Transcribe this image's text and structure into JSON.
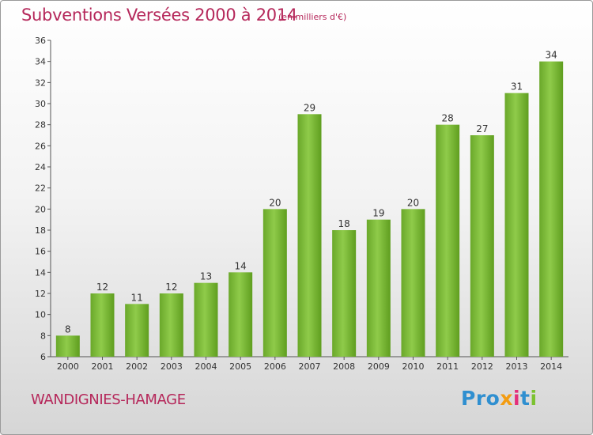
{
  "header": {
    "title": "Subventions Versées 2000 à 2014",
    "unit": "(en milliers d'€)"
  },
  "footer": {
    "city": "WANDIGNIES-HAMAGE",
    "logo": [
      "Pro",
      "x",
      "i",
      "t",
      "i"
    ]
  },
  "chart_data": {
    "type": "bar",
    "title": "Subventions Versées 2000 à 2014",
    "categories": [
      "2000",
      "2001",
      "2002",
      "2003",
      "2004",
      "2005",
      "2006",
      "2007",
      "2008",
      "2009",
      "2010",
      "2011",
      "2012",
      "2013",
      "2014"
    ],
    "values": [
      8,
      12,
      11,
      12,
      13,
      14,
      20,
      29,
      18,
      19,
      20,
      28,
      27,
      31,
      34
    ],
    "ylim": [
      6,
      36
    ],
    "yticks": [
      6,
      8,
      10,
      12,
      14,
      16,
      18,
      20,
      22,
      24,
      26,
      28,
      30,
      32,
      34,
      36
    ],
    "grid": false,
    "bar_color": "#7cba3a",
    "bar_color_dark": "#5f9e1f"
  }
}
